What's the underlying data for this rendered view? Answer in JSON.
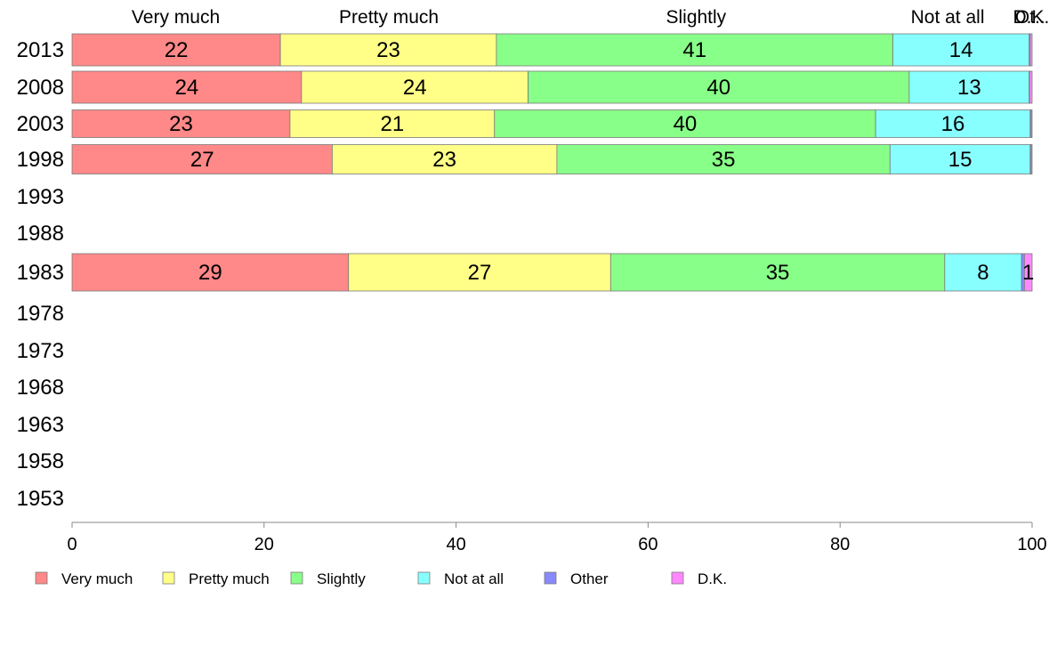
{
  "chart_data": {
    "type": "bar",
    "orientation": "horizontal",
    "stacked": true,
    "categories": [
      "2013",
      "2008",
      "2003",
      "1998",
      "1993",
      "1988",
      "1983",
      "1978",
      "1973",
      "1968",
      "1963",
      "1958",
      "1953"
    ],
    "series": [
      {
        "name": "Very much",
        "color": "#ff8888",
        "values": [
          21.7,
          23.9,
          22.7,
          27.1,
          null,
          null,
          28.8,
          null,
          null,
          null,
          null,
          null,
          null
        ],
        "labels": [
          "22",
          "24",
          "23",
          "27",
          null,
          null,
          "29",
          null,
          null,
          null,
          null,
          null,
          null
        ]
      },
      {
        "name": "Pretty much",
        "color": "#ffff88",
        "values": [
          22.5,
          23.6,
          21.3,
          23.4,
          null,
          null,
          27.3,
          null,
          null,
          null,
          null,
          null,
          null
        ],
        "labels": [
          "23",
          "24",
          "21",
          "23",
          null,
          null,
          "27",
          null,
          null,
          null,
          null,
          null,
          null
        ]
      },
      {
        "name": "Slightly",
        "color": "#88ff88",
        "values": [
          41.3,
          39.7,
          39.7,
          34.7,
          null,
          null,
          34.8,
          null,
          null,
          null,
          null,
          null,
          null
        ],
        "labels": [
          "41",
          "40",
          "40",
          "35",
          null,
          null,
          "35",
          null,
          null,
          null,
          null,
          null,
          null
        ]
      },
      {
        "name": "Not at all",
        "color": "#88ffff",
        "values": [
          14.2,
          12.5,
          16.1,
          14.6,
          null,
          null,
          8.0,
          null,
          null,
          null,
          null,
          null,
          null
        ],
        "labels": [
          "14",
          "13",
          "16",
          "15",
          null,
          null,
          "8",
          null,
          null,
          null,
          null,
          null,
          null
        ]
      },
      {
        "name": "Other",
        "color": "#8888ff",
        "values": [
          0.1,
          0.05,
          0.1,
          0.1,
          null,
          null,
          0.3,
          null,
          null,
          null,
          null,
          null,
          null
        ],
        "labels": [
          null,
          null,
          null,
          null,
          null,
          null,
          null,
          null,
          null,
          null,
          null,
          null,
          null
        ]
      },
      {
        "name": "D.K.",
        "color": "#ff88ff",
        "values": [
          0.2,
          0.25,
          0.1,
          0.1,
          null,
          null,
          0.8,
          null,
          null,
          null,
          null,
          null,
          null
        ],
        "labels": [
          null,
          null,
          null,
          null,
          null,
          null,
          "1",
          null,
          null,
          null,
          null,
          null,
          null
        ]
      }
    ],
    "top_labels": [
      {
        "text": "Very much",
        "x": 10.8
      },
      {
        "text": "Pretty much",
        "x": 33.0
      },
      {
        "text": "Slightly",
        "x": 65.0
      },
      {
        "text": "Not at all",
        "x": 91.2
      },
      {
        "text": "Ot..",
        "x": 99.8
      },
      {
        "text": "D.K.",
        "x": 99.9
      }
    ],
    "xticks": [
      0,
      20,
      40,
      60,
      80,
      100
    ],
    "xlim": [
      0,
      100
    ],
    "xlabel": "",
    "ylabel": "",
    "title": "",
    "grid": false,
    "legend_position": "bottom"
  }
}
